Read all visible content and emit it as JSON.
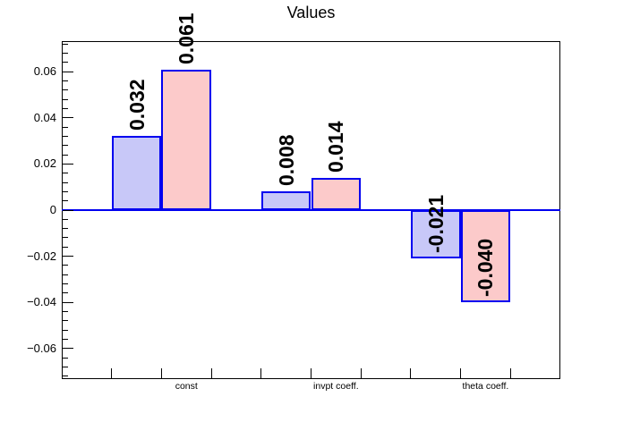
{
  "chart_data": {
    "type": "bar",
    "title": "Values",
    "categories": [
      "const",
      "invpt coeff.",
      "theta coeff."
    ],
    "series": [
      {
        "name": "light-blue-series",
        "fill": "#c8c8f8",
        "bins": [
          1,
          4,
          7
        ],
        "values": [
          0.032,
          0.008,
          -0.021
        ],
        "value_labels": [
          "0.032",
          "0.008",
          "-0.021"
        ]
      },
      {
        "name": "light-red-series",
        "fill": "#fccaca",
        "bins": [
          2,
          5,
          8
        ],
        "values": [
          0.061,
          0.014,
          -0.04
        ],
        "value_labels": [
          "0.061",
          "0.014",
          "-0.040"
        ]
      }
    ],
    "category_label_bins": [
      2,
      5,
      8
    ],
    "n_bins": 10,
    "ylim": [
      -0.0732,
      0.0732
    ],
    "y_major_ticks": [
      -0.06,
      -0.04,
      -0.02,
      0,
      0.02,
      0.04,
      0.06
    ],
    "y_tick_labels": [
      "−0.06",
      "−0.04",
      "−0.02",
      "0",
      "0.02",
      "0.04",
      "0.06"
    ],
    "y_minor_step": 0.004,
    "xlabel": "",
    "ylabel": "",
    "grid": false,
    "legend": "none",
    "colors": {
      "bar_border": "#0000f0",
      "zero_line": "#0000f0",
      "frame": "#000000",
      "text": "#000000"
    }
  }
}
